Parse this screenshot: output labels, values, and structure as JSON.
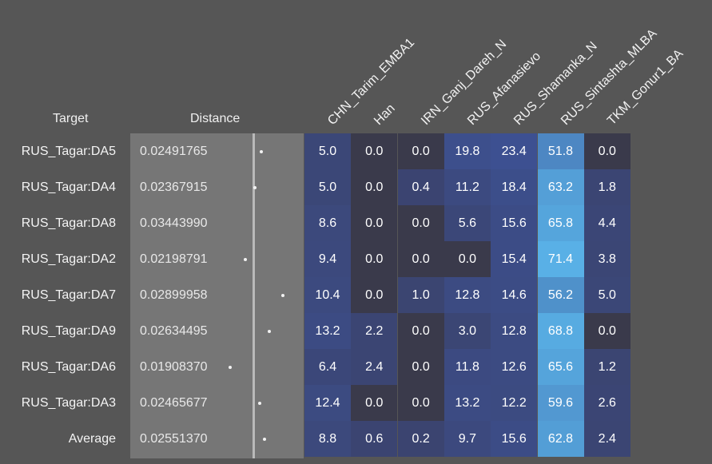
{
  "chart_data": {
    "type": "heatmap",
    "row_header": "Target",
    "distance_header": "Distance",
    "columns": [
      "CHN_Tarim_EMBA1",
      "Han",
      "IRN_Ganj_Dareh_N",
      "RUS_Afanasievo",
      "RUS_Shamanka_N",
      "RUS_Sintashta_MLBA",
      "TKM_Gonur1_BA"
    ],
    "rows": [
      {
        "target": "RUS_Tagar:DA5",
        "distance": "0.02491765",
        "values": [
          "5.0",
          "0.0",
          "0.0",
          "19.8",
          "23.4",
          "51.8",
          "0.0"
        ]
      },
      {
        "target": "RUS_Tagar:DA4",
        "distance": "0.02367915",
        "values": [
          "5.0",
          "0.0",
          "0.4",
          "11.2",
          "18.4",
          "63.2",
          "1.8"
        ]
      },
      {
        "target": "RUS_Tagar:DA8",
        "distance": "0.03443990",
        "values": [
          "8.6",
          "0.0",
          "0.0",
          "5.6",
          "15.6",
          "65.8",
          "4.4"
        ]
      },
      {
        "target": "RUS_Tagar:DA2",
        "distance": "0.02198791",
        "values": [
          "9.4",
          "0.0",
          "0.0",
          "0.0",
          "15.4",
          "71.4",
          "3.8"
        ]
      },
      {
        "target": "RUS_Tagar:DA7",
        "distance": "0.02899958",
        "values": [
          "10.4",
          "0.0",
          "1.0",
          "12.8",
          "14.6",
          "56.2",
          "5.0"
        ]
      },
      {
        "target": "RUS_Tagar:DA9",
        "distance": "0.02634495",
        "values": [
          "13.2",
          "2.2",
          "0.0",
          "3.0",
          "12.8",
          "68.8",
          "0.0"
        ]
      },
      {
        "target": "RUS_Tagar:DA6",
        "distance": "0.01908370",
        "values": [
          "6.4",
          "2.4",
          "0.0",
          "11.8",
          "12.6",
          "65.6",
          "1.2"
        ]
      },
      {
        "target": "RUS_Tagar:DA3",
        "distance": "0.02465677",
        "values": [
          "12.4",
          "0.0",
          "0.0",
          "13.2",
          "12.2",
          "59.6",
          "2.6"
        ]
      },
      {
        "target": "Average",
        "distance": "0.02551370",
        "values": [
          "8.8",
          "0.6",
          "0.2",
          "9.7",
          "15.6",
          "62.8",
          "2.4"
        ]
      }
    ],
    "distance_axis_range": [
      0.0125,
      0.0375
    ],
    "colors": {
      "background": "#565656",
      "distance_panel": "#767676",
      "average_line": "#b9b9b9",
      "cell_low": "#3a3a4b",
      "cell_mid": "#3d5295",
      "cell_high": "#5bb8ec"
    }
  }
}
